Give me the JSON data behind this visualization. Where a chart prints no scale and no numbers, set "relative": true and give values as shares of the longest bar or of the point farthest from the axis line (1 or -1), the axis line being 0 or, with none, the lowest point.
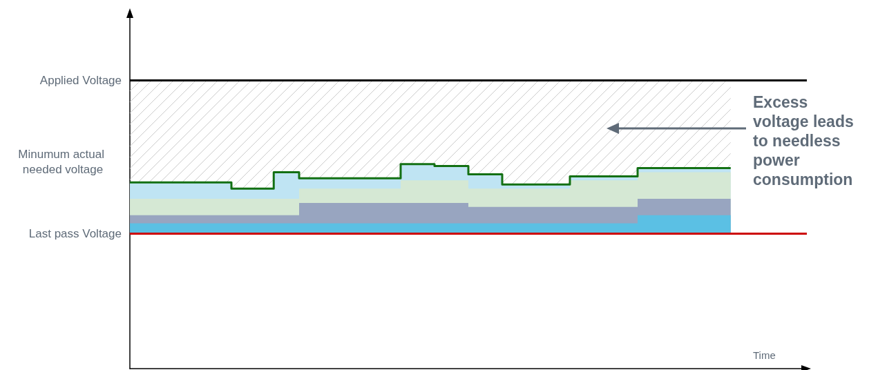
{
  "chart_data": {
    "type": "step",
    "relative": true,
    "xlabel": "Time",
    "legend": false,
    "grid": false,
    "categories": [
      null,
      null,
      null,
      null,
      null,
      null,
      null,
      null,
      null,
      null,
      null,
      null,
      null,
      null,
      null,
      null,
      null,
      null,
      null,
      null,
      null,
      null,
      null,
      null,
      null,
      null,
      null,
      null,
      null,
      null,
      null,
      null,
      null,
      null,
      null,
      null,
      null,
      null,
      null,
      null,
      null,
      null,
      null,
      null,
      null,
      null,
      null,
      null,
      null,
      null,
      null,
      null,
      null,
      null,
      null,
      null,
      null,
      null,
      null,
      null,
      null,
      null,
      null,
      null,
      null,
      null,
      null,
      null,
      null,
      null,
      null,
      null,
      null,
      null,
      null,
      null,
      null,
      null,
      null,
      null,
      null
    ],
    "series": [
      {
        "type": "area",
        "color": "#5bc0e4",
        "values": [
          0.71,
          0.71,
          0.71,
          0.71,
          0.71,
          0.71,
          0.71,
          0.71,
          0.71,
          0.71,
          0.71,
          0.71,
          0.71,
          0.71,
          0.71,
          0.71,
          0.71,
          0.71,
          0.71,
          0.71,
          0.71,
          0.71,
          0.71,
          0.71,
          0.71,
          0.71,
          0.71,
          0.71,
          0.71,
          0.71,
          0.71,
          0.71,
          0.71,
          0.71,
          0.71,
          0.71,
          0.71,
          0.71,
          0.71,
          0.71,
          0.71,
          0.71,
          0.71,
          0.71,
          0.71,
          0.71,
          0.71,
          0.71,
          0.71,
          0.71,
          0.71,
          0.71,
          0.71,
          0.71,
          0.71,
          0.71,
          0.71,
          0.71,
          0.71,
          0.71,
          0.75,
          0.75,
          0.75,
          0.75,
          0.75,
          0.75,
          0.75,
          0.75,
          0.75,
          0.75,
          0.75,
          0.75,
          null,
          null,
          null,
          null,
          null,
          null,
          null,
          null,
          null
        ]
      },
      {
        "type": "area",
        "color": "#98a5c0",
        "values": [
          0.75,
          0.75,
          0.75,
          0.75,
          0.75,
          0.75,
          0.75,
          0.75,
          0.75,
          0.75,
          0.75,
          0.75,
          0.75,
          0.75,
          0.75,
          0.75,
          0.75,
          0.75,
          0.75,
          0.75,
          0.81,
          0.81,
          0.81,
          0.81,
          0.81,
          0.81,
          0.81,
          0.81,
          0.81,
          0.81,
          0.81,
          0.81,
          0.81,
          0.81,
          0.81,
          0.81,
          0.81,
          0.81,
          0.81,
          0.81,
          0.79,
          0.79,
          0.79,
          0.79,
          0.79,
          0.79,
          0.79,
          0.79,
          0.79,
          0.79,
          0.79,
          0.79,
          0.79,
          0.79,
          0.79,
          0.79,
          0.79,
          0.79,
          0.79,
          0.79,
          0.83,
          0.83,
          0.83,
          0.83,
          0.83,
          0.83,
          0.83,
          0.83,
          0.83,
          0.83,
          0.83,
          0.83,
          null,
          null,
          null,
          null,
          null,
          null,
          null,
          null,
          null
        ]
      },
      {
        "type": "area",
        "color": "#d5e8d4",
        "values": [
          0.83,
          0.83,
          0.83,
          0.83,
          0.83,
          0.83,
          0.83,
          0.83,
          0.83,
          0.83,
          0.83,
          0.83,
          0.83,
          0.83,
          0.83,
          0.83,
          0.83,
          0.83,
          0.83,
          0.83,
          0.88,
          0.88,
          0.88,
          0.88,
          0.88,
          0.88,
          0.88,
          0.88,
          0.88,
          0.88,
          0.88,
          0.88,
          0.92,
          0.92,
          0.92,
          0.92,
          0.92,
          0.92,
          0.92,
          0.92,
          0.88,
          0.88,
          0.88,
          0.88,
          0.88,
          0.88,
          0.88,
          0.88,
          0.88,
          0.88,
          0.88,
          0.88,
          0.92,
          0.92,
          0.92,
          0.92,
          0.92,
          0.92,
          0.92,
          0.92,
          0.96,
          0.96,
          0.96,
          0.96,
          0.96,
          0.96,
          0.96,
          0.96,
          0.96,
          0.96,
          0.96,
          0.96,
          null,
          null,
          null,
          null,
          null,
          null,
          null,
          null,
          null
        ]
      },
      {
        "type": "area",
        "color": "#bfe4f3",
        "values": [
          0.91,
          0.91,
          0.91,
          0.91,
          0.91,
          0.91,
          0.91,
          0.91,
          0.91,
          0.91,
          0.91,
          0.91,
          0.88,
          0.88,
          0.88,
          0.88,
          0.88,
          0.96,
          0.96,
          0.96,
          0.93,
          0.93,
          0.93,
          0.93,
          0.93,
          0.93,
          0.93,
          0.93,
          0.93,
          0.93,
          0.93,
          0.93,
          1.0,
          1.0,
          1.0,
          1.0,
          0.99,
          0.99,
          0.99,
          0.99,
          0.95,
          0.95,
          0.95,
          0.95,
          0.9,
          0.9,
          0.9,
          0.9,
          0.9,
          0.9,
          0.9,
          0.9,
          0.94,
          0.94,
          0.94,
          0.94,
          0.94,
          0.94,
          0.94,
          0.94,
          0.98,
          0.98,
          0.98,
          0.98,
          0.98,
          0.98,
          0.98,
          0.98,
          0.98,
          0.98,
          0.98,
          0.98,
          null,
          null,
          null,
          null,
          null,
          null,
          null,
          null,
          null
        ]
      },
      {
        "name": "Minumum actual needed voltage",
        "color": "#137013",
        "values": [
          0.91,
          0.91,
          0.91,
          0.91,
          0.91,
          0.91,
          0.91,
          0.91,
          0.91,
          0.91,
          0.91,
          0.91,
          0.88,
          0.88,
          0.88,
          0.88,
          0.88,
          0.96,
          0.96,
          0.96,
          0.93,
          0.93,
          0.93,
          0.93,
          0.93,
          0.93,
          0.93,
          0.93,
          0.93,
          0.93,
          0.93,
          0.93,
          1.0,
          1.0,
          1.0,
          1.0,
          0.99,
          0.99,
          0.99,
          0.99,
          0.95,
          0.95,
          0.95,
          0.95,
          0.9,
          0.9,
          0.9,
          0.9,
          0.9,
          0.9,
          0.9,
          0.9,
          0.94,
          0.94,
          0.94,
          0.94,
          0.94,
          0.94,
          0.94,
          0.94,
          0.98,
          0.98,
          0.98,
          0.98,
          0.98,
          0.98,
          0.98,
          0.98,
          0.98,
          0.98,
          0.98,
          0.98,
          null,
          null,
          null,
          null,
          null,
          null,
          null,
          null,
          null
        ]
      }
    ],
    "ref_lines": [
      {
        "axis": "y",
        "value": 1.41,
        "label": "Applied Voltage",
        "color": "#000000"
      },
      {
        "axis": "y",
        "value": 0.66,
        "label": "Last pass Voltage",
        "color": "#cc0000"
      }
    ],
    "bands": [
      {
        "axis": "y",
        "from": 0.66,
        "to": 1.41,
        "color": "#cccccc"
      }
    ],
    "annotations": [
      "Excess voltage leads to needless power consumption"
    ]
  }
}
